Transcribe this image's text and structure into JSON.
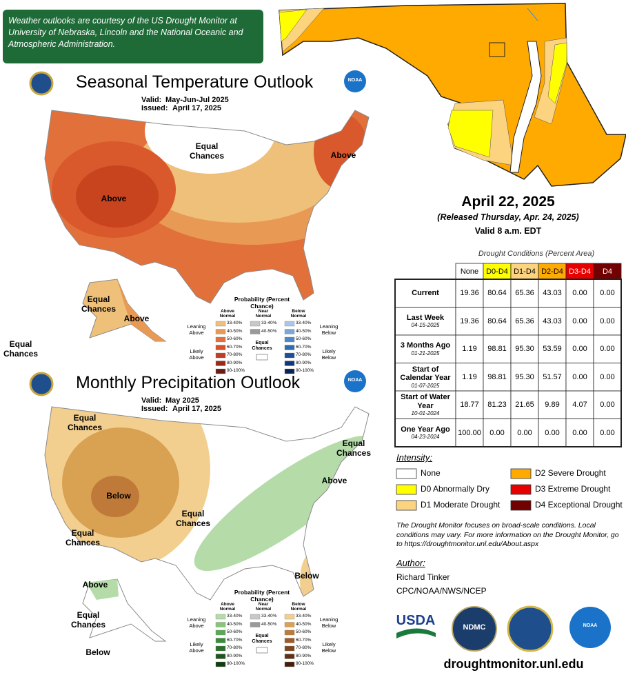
{
  "credit": "Weather outlooks are courtesy of the US Drought Monitor at University of Nebraska, Lincoln and the National Oceanic and Atmospheric Administration.",
  "probability_legend": {
    "title": "Probability (Percent Chance)",
    "above": "Above Normal",
    "near": "Near Normal",
    "below": "Below Normal",
    "leaning_above": "Leaning Above",
    "likely_above": "Likely Above",
    "leaning_below": "Leaning Below",
    "likely_below": "Likely Below",
    "equal": "Equal Chances",
    "bins": [
      "33-40%",
      "40-50%",
      "50-60%",
      "60-70%",
      "70-80%",
      "80-90%",
      "90-100%"
    ],
    "near_colors": [
      "#c8c8c8",
      "#999999"
    ]
  },
  "temperature_outlook": {
    "title": "Seasonal Temperature Outlook",
    "valid_label": "Valid:",
    "valid": "May-Jun-Jul 2025",
    "issued_label": "Issued:",
    "issued": "April 17, 2025",
    "map_labels": [
      "Equal Chances",
      "Above",
      "Above",
      "Equal Chances",
      "Above",
      "Equal Chances"
    ],
    "above_colors": [
      "#eec07a",
      "#e89a55",
      "#e2703a",
      "#d9502a",
      "#c23b22",
      "#9a2a1a",
      "#6b1c10"
    ],
    "below_colors": [
      "#a9c7e8",
      "#7aa7d8",
      "#4f88c6",
      "#2f6bb0",
      "#1d4e96",
      "#14377a",
      "#0b2356"
    ]
  },
  "precipitation_outlook": {
    "title": "Monthly Precipitation Outlook",
    "valid_label": "Valid:",
    "valid": "May 2025",
    "issued_label": "Issued:",
    "issued": "April 17, 2025",
    "map_labels": [
      "Equal Chances",
      "Below",
      "Equal Chances",
      "Equal Chances",
      "Equal Chances",
      "Above",
      "Below",
      "Above",
      "Equal Chances",
      "Below"
    ],
    "above_colors": [
      "#b4dba8",
      "#88c57a",
      "#5aaa55",
      "#3a8a3a",
      "#2a6f2a",
      "#1e561e",
      "#123c12"
    ],
    "below_colors": [
      "#f2cf8f",
      "#d9a152",
      "#bf7a3a",
      "#9f5a2a",
      "#80441e",
      "#603015",
      "#42200c"
    ]
  },
  "map_date": "April 22, 2025",
  "released": "(Released Thursday, Apr. 24, 2025)",
  "valid_time": "Valid 8 a.m. EDT",
  "drought_table": {
    "title": "Drought Conditions (Percent Area)",
    "columns": [
      "None",
      "D0-D4",
      "D1-D4",
      "D2-D4",
      "D3-D4",
      "D4"
    ],
    "rows": [
      {
        "label": "Current",
        "date": null,
        "cells": [
          "19.36",
          "80.64",
          "65.36",
          "43.03",
          "0.00",
          "0.00"
        ]
      },
      {
        "label": "Last Week",
        "date": "04-15-2025",
        "cells": [
          "19.36",
          "80.64",
          "65.36",
          "43.03",
          "0.00",
          "0.00"
        ]
      },
      {
        "label": "3 Months Ago",
        "date": "01-21-2025",
        "cells": [
          "1.19",
          "98.81",
          "95.30",
          "53.59",
          "0.00",
          "0.00"
        ]
      },
      {
        "label": "Start of Calendar Year",
        "date": "01-07-2025",
        "cells": [
          "1.19",
          "98.81",
          "95.30",
          "51.57",
          "0.00",
          "0.00"
        ]
      },
      {
        "label": "Start of Water Year",
        "date": "10-01-2024",
        "cells": [
          "18.77",
          "81.23",
          "21.65",
          "9.89",
          "4.07",
          "0.00"
        ]
      },
      {
        "label": "One Year Ago",
        "date": "04-23-2024",
        "cells": [
          "100.00",
          "0.00",
          "0.00",
          "0.00",
          "0.00",
          "0.00"
        ]
      }
    ]
  },
  "intensity": {
    "title": "Intensity:",
    "items": [
      {
        "label": "None",
        "color": "#ffffff"
      },
      {
        "label": "D0 Abnormally Dry",
        "color": "#ffff00"
      },
      {
        "label": "D1 Moderate Drought",
        "color": "#fcd37f"
      },
      {
        "label": "D2 Severe Drought",
        "color": "#ffaa00"
      },
      {
        "label": "D3 Extreme Drought",
        "color": "#e60000"
      },
      {
        "label": "D4 Exceptional Drought",
        "color": "#730000"
      }
    ]
  },
  "note": "The Drought Monitor focuses on broad-scale conditions. Local conditions may vary. For more information on the Drought Monitor, go to https://droughtmonitor.unl.edu/About.aspx",
  "author_label": "Author:",
  "author": "Richard Tinker",
  "author_org": "CPC/NOAA/NWS/NCEP",
  "logos": {
    "usda": "USDA",
    "ndmc": "NDMC",
    "noaa": "NOAA"
  },
  "url": "droughtmonitor.unl.edu"
}
